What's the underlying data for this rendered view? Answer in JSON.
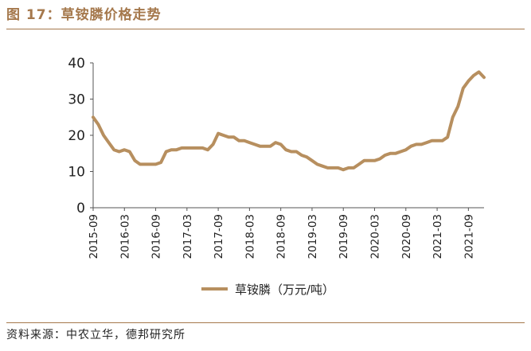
{
  "figure": {
    "title": "图 17：草铵膦价格走势",
    "source": "资料来源：中农立华，德邦研究所"
  },
  "colors": {
    "accent": "#a5784c",
    "series": "#b78f5f"
  },
  "chart_data": {
    "type": "line",
    "xlabel": "",
    "ylabel": "",
    "ylim": [
      0,
      40
    ],
    "yticks": [
      0,
      10,
      20,
      30,
      40
    ],
    "xlim": [
      "2015-09",
      "2021-12"
    ],
    "xticks": [
      "2015-09",
      "2016-03",
      "2016-09",
      "2017-03",
      "2017-09",
      "2018-03",
      "2018-09",
      "2019-03",
      "2019-09",
      "2020-03",
      "2020-09",
      "2021-03",
      "2021-09"
    ],
    "grid": false,
    "legend_position": "bottom",
    "series": [
      {
        "name": "草铵膦（万元/吨）",
        "x": [
          "2015-09",
          "2015-10",
          "2015-11",
          "2015-12",
          "2016-01",
          "2016-02",
          "2016-03",
          "2016-04",
          "2016-05",
          "2016-06",
          "2016-07",
          "2016-08",
          "2016-09",
          "2016-10",
          "2016-11",
          "2016-12",
          "2017-01",
          "2017-02",
          "2017-03",
          "2017-04",
          "2017-05",
          "2017-06",
          "2017-07",
          "2017-08",
          "2017-09",
          "2017-10",
          "2017-11",
          "2017-12",
          "2018-01",
          "2018-02",
          "2018-03",
          "2018-04",
          "2018-05",
          "2018-06",
          "2018-07",
          "2018-08",
          "2018-09",
          "2018-10",
          "2018-11",
          "2018-12",
          "2019-01",
          "2019-02",
          "2019-03",
          "2019-04",
          "2019-05",
          "2019-06",
          "2019-07",
          "2019-08",
          "2019-09",
          "2019-10",
          "2019-11",
          "2019-12",
          "2020-01",
          "2020-02",
          "2020-03",
          "2020-04",
          "2020-05",
          "2020-06",
          "2020-07",
          "2020-08",
          "2020-09",
          "2020-10",
          "2020-11",
          "2020-12",
          "2021-01",
          "2021-02",
          "2021-03",
          "2021-04",
          "2021-05",
          "2021-06",
          "2021-07",
          "2021-08",
          "2021-09",
          "2021-10",
          "2021-11",
          "2021-12"
        ],
        "values": [
          25,
          23,
          20,
          18,
          16,
          15.5,
          16,
          15.5,
          13,
          12,
          12,
          12,
          12,
          12.5,
          15.5,
          16,
          16,
          16.5,
          16.5,
          16.5,
          16.5,
          16.5,
          16,
          17.5,
          20.5,
          20,
          19.5,
          19.5,
          18.5,
          18.5,
          18,
          17.5,
          17,
          17,
          17,
          18,
          17.5,
          16,
          15.5,
          15.5,
          14.5,
          14,
          13,
          12,
          11.5,
          11,
          11,
          11,
          10.5,
          11,
          11,
          12,
          13,
          13,
          13,
          13.5,
          14.5,
          15,
          15,
          15.5,
          16,
          17,
          17.5,
          17.5,
          18,
          18.5,
          18.5,
          18.5,
          19.5,
          25,
          28,
          33,
          35,
          36.5,
          37.5,
          36
        ]
      }
    ]
  }
}
